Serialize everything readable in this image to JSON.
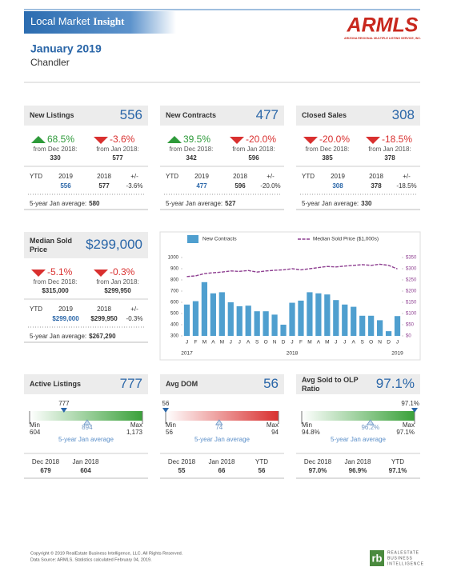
{
  "header": {
    "title_regular": "Local Market",
    "title_bold": "Insight",
    "logo": "ARMLS",
    "logo_subtitle": "ARIZONA REGIONAL MULTIPLE LISTING SERVICE, INC.",
    "period": "January 2019",
    "area": "Chandler"
  },
  "stat_cards": [
    {
      "title": "New Listings",
      "value": "556",
      "changes": [
        {
          "pct": "68.5%",
          "direction": "up",
          "from": "from Dec 2018:",
          "base": "330"
        },
        {
          "pct": "-3.6%",
          "direction": "down",
          "from": "from Jan 2018:",
          "base": "577"
        }
      ],
      "ytd": {
        "headers": [
          "YTD",
          "2019",
          "2018",
          "+/-"
        ],
        "values": [
          "556",
          "577",
          "-3.6%"
        ]
      },
      "average_label": "5-year Jan average:",
      "average": "580"
    },
    {
      "title": "New Contracts",
      "value": "477",
      "changes": [
        {
          "pct": "39.5%",
          "direction": "up",
          "from": "from Dec 2018:",
          "base": "342"
        },
        {
          "pct": "-20.0%",
          "direction": "down",
          "from": "from Jan 2018:",
          "base": "596"
        }
      ],
      "ytd": {
        "headers": [
          "YTD",
          "2019",
          "2018",
          "+/-"
        ],
        "values": [
          "477",
          "596",
          "-20.0%"
        ]
      },
      "average_label": "5-year Jan average:",
      "average": "527"
    },
    {
      "title": "Closed Sales",
      "value": "308",
      "changes": [
        {
          "pct": "-20.0%",
          "direction": "down",
          "from": "from Dec 2018:",
          "base": "385"
        },
        {
          "pct": "-18.5%",
          "direction": "down",
          "from": "from Jan 2018:",
          "base": "378"
        }
      ],
      "ytd": {
        "headers": [
          "YTD",
          "2019",
          "2018",
          "+/-"
        ],
        "values": [
          "308",
          "378",
          "-18.5%"
        ]
      },
      "average_label": "5-year Jan average:",
      "average": "330"
    }
  ],
  "price_card": {
    "title": "Median Sold Price",
    "value": "$299,000",
    "changes": [
      {
        "pct": "-5.1%",
        "direction": "down",
        "from": "from Dec 2018:",
        "base": "$315,000"
      },
      {
        "pct": "-0.3%",
        "direction": "down",
        "from": "from Jan 2018:",
        "base": "$299,950"
      }
    ],
    "ytd": {
      "headers": [
        "YTD",
        "2019",
        "2018",
        "+/-"
      ],
      "values": [
        "$299,000",
        "$299,950",
        "-0.3%"
      ]
    },
    "average_label": "5-year Jan average:",
    "average": "$267,290"
  },
  "chart_data": {
    "type": "bar",
    "categories": [
      "J",
      "F",
      "M",
      "A",
      "M",
      "J",
      "J",
      "A",
      "S",
      "O",
      "N",
      "D",
      "J",
      "F",
      "M",
      "A",
      "M",
      "J",
      "J",
      "A",
      "S",
      "O",
      "N",
      "D",
      "J"
    ],
    "year_labels": [
      "2017",
      "2018",
      "2019"
    ],
    "series": [
      {
        "name": "New Contracts",
        "color": "#4f9fcf",
        "type": "bar",
        "values": [
          580,
          610,
          780,
          680,
          690,
          600,
          565,
          570,
          520,
          520,
          490,
          400,
          596,
          615,
          690,
          680,
          670,
          620,
          580,
          560,
          480,
          480,
          440,
          342,
          477
        ]
      },
      {
        "name": "Median Sold Price ($1,000s)",
        "color": "#8e3f91",
        "type": "line",
        "axis": "y2",
        "values": [
          265,
          268,
          278,
          282,
          285,
          290,
          288,
          292,
          285,
          290,
          293,
          295,
          300,
          295,
          300,
          305,
          310,
          308,
          312,
          315,
          318,
          315,
          320,
          315,
          299
        ]
      }
    ],
    "ylim": [
      300,
      1000
    ],
    "yticks": [
      300,
      400,
      500,
      600,
      700,
      800,
      900,
      1000
    ],
    "y2lim": [
      0,
      350
    ],
    "y2ticks": [
      {
        "value": 0,
        "label": "$0"
      },
      {
        "value": 50,
        "label": "$50"
      },
      {
        "value": 100,
        "label": "$100"
      },
      {
        "value": 150,
        "label": "$150"
      },
      {
        "value": 200,
        "label": "$200"
      },
      {
        "value": 250,
        "label": "$250"
      },
      {
        "value": 300,
        "label": "$300"
      },
      {
        "value": 350,
        "label": "$350"
      }
    ],
    "grid": false
  },
  "gauge_cards": [
    {
      "title": "Active Listings",
      "value": "777",
      "marker": "777",
      "gauge_color": "#3aa13a",
      "min_label": "Min",
      "min": "604",
      "max_label": "Max",
      "max": "1,173",
      "average": "894",
      "average_label": "5-year Jan average",
      "history": {
        "headers": [
          "Dec 2018",
          "Jan 2018"
        ],
        "values": [
          "679",
          "604"
        ]
      }
    },
    {
      "title": "Avg DOM",
      "value": "56",
      "marker": "56",
      "gauge_color": "#d9302f",
      "min_label": "Min",
      "min": "56",
      "max_label": "Max",
      "max": "94",
      "average": "74",
      "average_label": "5-year Jan average",
      "history": {
        "headers": [
          "Dec 2018",
          "Jan 2018",
          "YTD"
        ],
        "values": [
          "55",
          "66",
          "56"
        ]
      }
    },
    {
      "title": "Avg Sold to OLP Ratio",
      "value": "97.1%",
      "marker": "97.1%",
      "gauge_color": "#3aa13a",
      "min_label": "Min",
      "min": "94.8%",
      "max_label": "Max",
      "max": "97.1%",
      "average": "96.2%",
      "average_label": "5-year Jan average",
      "history": {
        "headers": [
          "Dec 2018",
          "Jan 2018",
          "YTD"
        ],
        "values": [
          "97.0%",
          "96.9%",
          "97.1%"
        ]
      }
    }
  ],
  "footer": {
    "copyright": "Copyright © 2019 RealEstate Business Intelligence, LLC. All Rights Reserved.",
    "source": "Data Source: ARMLS. Statistics calculated February 04, 2019.",
    "logo_mark": "rb",
    "logo_text": [
      "REALESTATE",
      "BUSINESS",
      "INTELLIGENCE"
    ]
  }
}
